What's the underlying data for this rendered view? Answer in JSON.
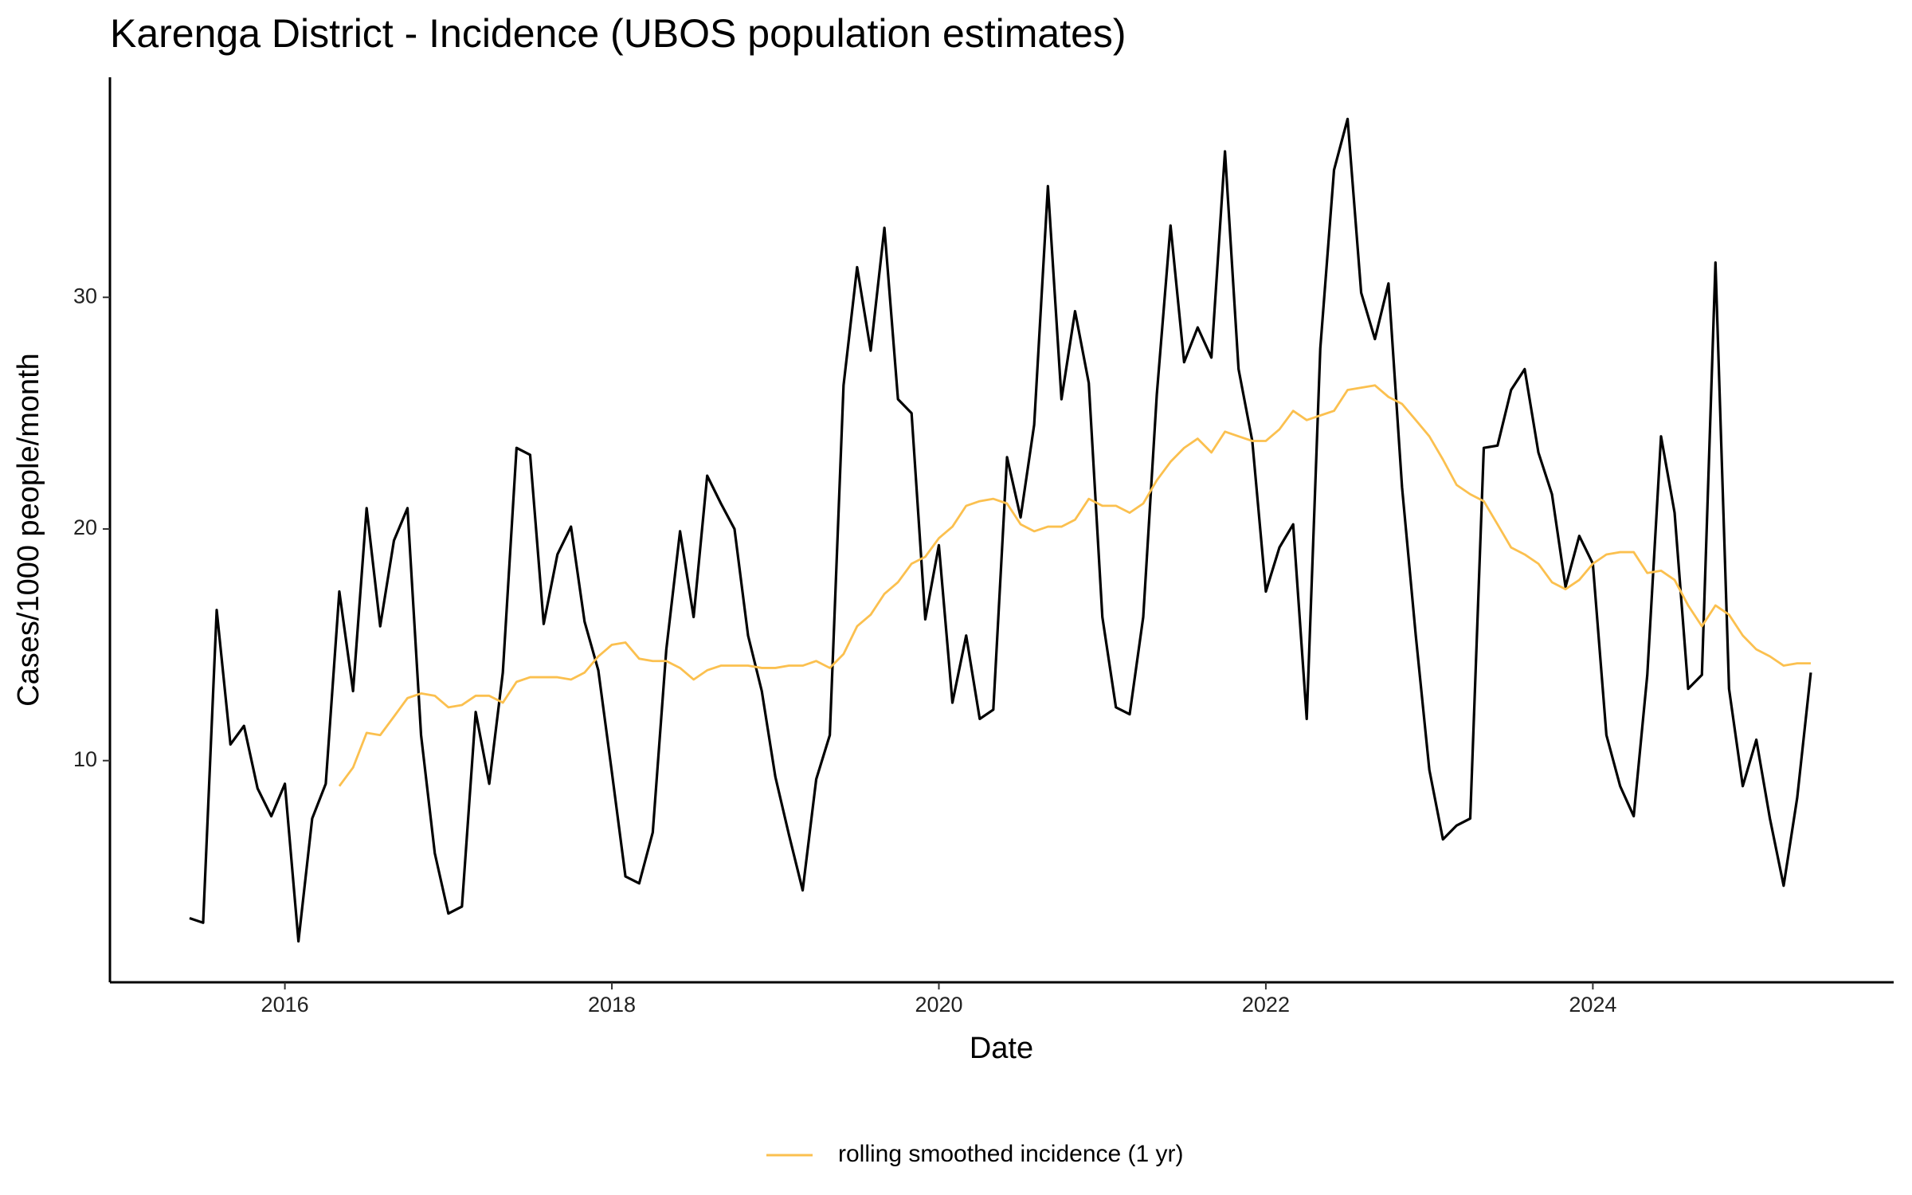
{
  "chart_data": {
    "type": "line",
    "title": "Karenga District - Incidence (UBOS population estimates)",
    "x_label": "Date",
    "y_label": "Cases/1000 people/month",
    "x": [
      2015.417,
      2015.5,
      2015.583,
      2015.667,
      2015.75,
      2015.833,
      2015.917,
      2016,
      2016.083,
      2016.167,
      2016.25,
      2016.333,
      2016.417,
      2016.5,
      2016.583,
      2016.667,
      2016.75,
      2016.833,
      2016.917,
      2017,
      2017.083,
      2017.167,
      2017.25,
      2017.333,
      2017.417,
      2017.5,
      2017.583,
      2017.667,
      2017.75,
      2017.833,
      2017.917,
      2018,
      2018.083,
      2018.167,
      2018.25,
      2018.333,
      2018.417,
      2018.5,
      2018.583,
      2018.667,
      2018.75,
      2018.833,
      2018.917,
      2019,
      2019.083,
      2019.167,
      2019.25,
      2019.333,
      2019.417,
      2019.5,
      2019.583,
      2019.667,
      2019.75,
      2019.833,
      2019.917,
      2020,
      2020.083,
      2020.167,
      2020.25,
      2020.333,
      2020.417,
      2020.5,
      2020.583,
      2020.667,
      2020.75,
      2020.833,
      2020.917,
      2021,
      2021.083,
      2021.167,
      2021.25,
      2021.333,
      2021.417,
      2021.5,
      2021.583,
      2021.667,
      2021.75,
      2021.833,
      2021.917,
      2022,
      2022.083,
      2022.167,
      2022.25,
      2022.333,
      2022.417,
      2022.5,
      2022.583,
      2022.667,
      2022.75,
      2022.833,
      2022.917,
      2023,
      2023.083,
      2023.167,
      2023.25,
      2023.333,
      2023.417,
      2023.5,
      2023.583,
      2023.667,
      2023.75,
      2023.833,
      2023.917,
      2024,
      2024.083,
      2024.167,
      2024.25,
      2024.333,
      2024.417,
      2024.5,
      2024.583,
      2024.667,
      2024.75,
      2024.833,
      2024.917,
      2025,
      2025.083,
      2025.167,
      2025.25,
      2025.333
    ],
    "series": [
      {
        "color": "#000000",
        "values": [
          3.2,
          3.0,
          16.5,
          10.7,
          11.5,
          8.8,
          7.6,
          9.0,
          2.2,
          7.5,
          9.0,
          17.3,
          13.0,
          20.9,
          15.8,
          19.5,
          20.9,
          11.1,
          6.0,
          3.4,
          3.7,
          12.1,
          9.0,
          13.8,
          23.5,
          23.2,
          15.9,
          18.9,
          20.1,
          16.0,
          13.9,
          9.5,
          5.0,
          4.7,
          6.9,
          14.8,
          19.9,
          16.2,
          22.3,
          21.1,
          20.0,
          15.4,
          13.0,
          9.3,
          6.8,
          4.4,
          9.2,
          11.1,
          26.2,
          31.3,
          27.7,
          33.0,
          25.6,
          25.0,
          16.1,
          19.3,
          12.5,
          15.4,
          11.8,
          12.2,
          23.1,
          20.5,
          24.5,
          34.8,
          25.6,
          29.4,
          26.3,
          16.2,
          12.3,
          12.0,
          16.2,
          25.8,
          33.1,
          27.2,
          28.7,
          27.4,
          36.3,
          26.9,
          23.8,
          17.3,
          19.2,
          20.2,
          11.8,
          27.8,
          35.5,
          37.7,
          30.2,
          28.2,
          30.6,
          21.8,
          15.4,
          9.6,
          6.6,
          7.2,
          7.5,
          23.5,
          23.6,
          26.0,
          26.9,
          23.3,
          21.5,
          17.5,
          19.7,
          18.5,
          11.1,
          8.9,
          7.6,
          13.7,
          24.0,
          20.7,
          13.1,
          13.7,
          31.5,
          13.1,
          8.9,
          10.9,
          7.5,
          4.6,
          8.4,
          13.8
        ]
      },
      {
        "name": "rolling smoothed incidence (1 yr)",
        "color": "#fbc04f",
        "values": [
          null,
          null,
          null,
          null,
          null,
          null,
          null,
          null,
          null,
          null,
          null,
          8.9,
          9.7,
          11.2,
          11.1,
          11.9,
          12.7,
          12.9,
          12.8,
          12.3,
          12.4,
          12.8,
          12.8,
          12.5,
          13.4,
          13.6,
          13.6,
          13.6,
          13.5,
          13.8,
          14.5,
          15.0,
          15.1,
          14.4,
          14.3,
          14.3,
          14.0,
          13.5,
          13.9,
          14.1,
          14.1,
          14.1,
          14.0,
          14.0,
          14.1,
          14.1,
          14.3,
          14.0,
          14.6,
          15.8,
          16.3,
          17.2,
          17.7,
          18.5,
          18.8,
          19.6,
          20.1,
          21.0,
          21.2,
          21.3,
          21.1,
          20.2,
          19.9,
          20.1,
          20.1,
          20.4,
          21.3,
          21.0,
          21.0,
          20.7,
          21.1,
          22.1,
          22.9,
          23.5,
          23.9,
          23.3,
          24.2,
          24.0,
          23.8,
          23.8,
          24.3,
          25.1,
          24.7,
          24.9,
          25.1,
          26.0,
          26.1,
          26.2,
          25.7,
          25.4,
          24.7,
          24.0,
          23.0,
          21.9,
          21.5,
          21.2,
          20.2,
          19.2,
          18.9,
          18.5,
          17.7,
          17.4,
          17.8,
          18.5,
          18.9,
          19.0,
          19.0,
          18.1,
          18.2,
          17.8,
          16.7,
          15.8,
          16.7,
          16.3,
          15.4,
          14.8,
          14.5,
          14.1,
          14.2,
          14.2
        ]
      }
    ],
    "xlim": [
      2014.93,
      2025.84
    ],
    "xticks": [
      2016,
      2018,
      2020,
      2022,
      2024
    ],
    "ylim": [
      0.43,
      39.5
    ],
    "yticks": [
      10,
      20,
      30
    ],
    "grid": false,
    "legend": "bottom"
  }
}
